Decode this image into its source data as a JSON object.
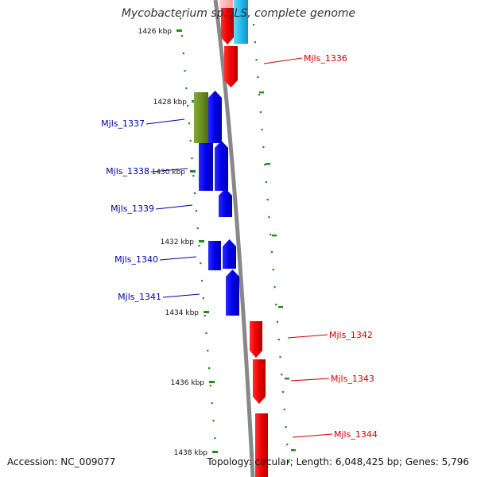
{
  "title": "Mycobacterium sp. JLS, complete genome",
  "footer": {
    "accession": "Accession: NC_009077",
    "topology": "Topology: circular; Length: 6,048,425 bp; Genes: 5,796"
  },
  "colors": {
    "forward_gene": "#ee0000",
    "reverse_gene": "#0000ee",
    "highlight_gene": "#6b8e23",
    "rna_gene": "#22bbee",
    "backbone": "#888888",
    "ticks": "#228b22",
    "forward_label": "#cc0000",
    "reverse_label": "#0000aa"
  },
  "axis": {
    "ticks": [
      {
        "label": "1426 kbp"
      },
      {
        "label": "1428 kbp"
      },
      {
        "label": "1430 kbp"
      },
      {
        "label": "1432 kbp"
      },
      {
        "label": "1434 kbp"
      },
      {
        "label": "1436 kbp"
      },
      {
        "label": "1438 kbp"
      }
    ]
  },
  "genes": {
    "forward": [
      {
        "label": "Mjls_1336"
      },
      {
        "label": "Mjls_1342"
      },
      {
        "label": "Mjls_1343"
      },
      {
        "label": "Mjls_1344"
      }
    ],
    "reverse": [
      {
        "label": "Mjls_1337"
      },
      {
        "label": "Mjls_1338"
      },
      {
        "label": "Mjls_1339"
      },
      {
        "label": "Mjls_1340"
      },
      {
        "label": "Mjls_1341"
      }
    ]
  }
}
